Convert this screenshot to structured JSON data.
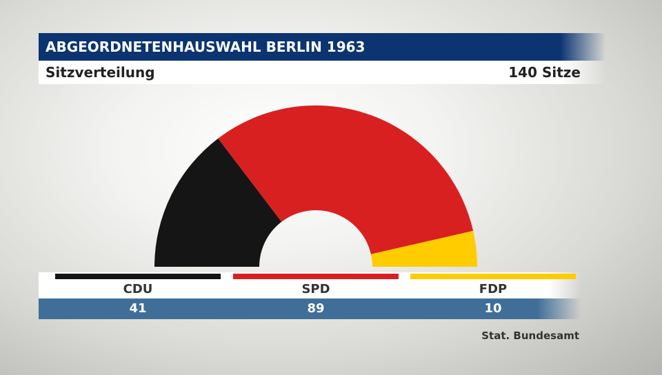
{
  "header": {
    "title": "ABGEORDNETENHAUSWAHL BERLIN 1963",
    "subtitle": "Sitzverteilung",
    "total_label": "140 Sitze"
  },
  "chart_data": {
    "type": "pie",
    "variant": "half-donut",
    "total": 140,
    "categories": [
      "CDU",
      "SPD",
      "FDP"
    ],
    "values": [
      41,
      89,
      10
    ],
    "value_labels": [
      "41",
      "89",
      "10"
    ],
    "colors": [
      "#151515",
      "#d92020",
      "#ffcc00"
    ]
  },
  "footer": {
    "source": "Stat. Bundesamt"
  }
}
